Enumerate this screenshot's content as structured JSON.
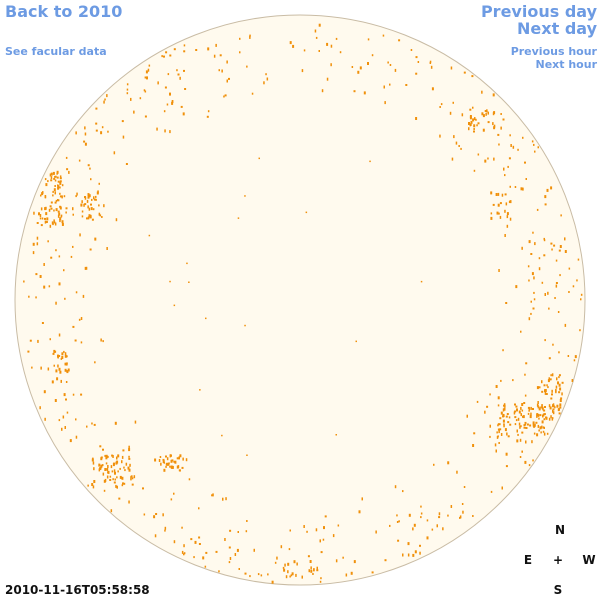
{
  "nav": {
    "back_label": "Back to 2010",
    "facular_label": "See facular data",
    "prev_day_label": "Previous day",
    "next_day_label": "Next day",
    "prev_hour_label": "Previous hour",
    "next_hour_label": "Next hour"
  },
  "timestamp": "2010-11-16T05:58:58",
  "compass": {
    "north": "N",
    "east": "E",
    "center": "+",
    "west": "W",
    "south": "S"
  },
  "colors": {
    "link": "#6d9be3",
    "disk_fill": "#fffaee",
    "disk_edge": "#c9bca5",
    "facula": "#f0900a",
    "text": "#111111"
  }
}
